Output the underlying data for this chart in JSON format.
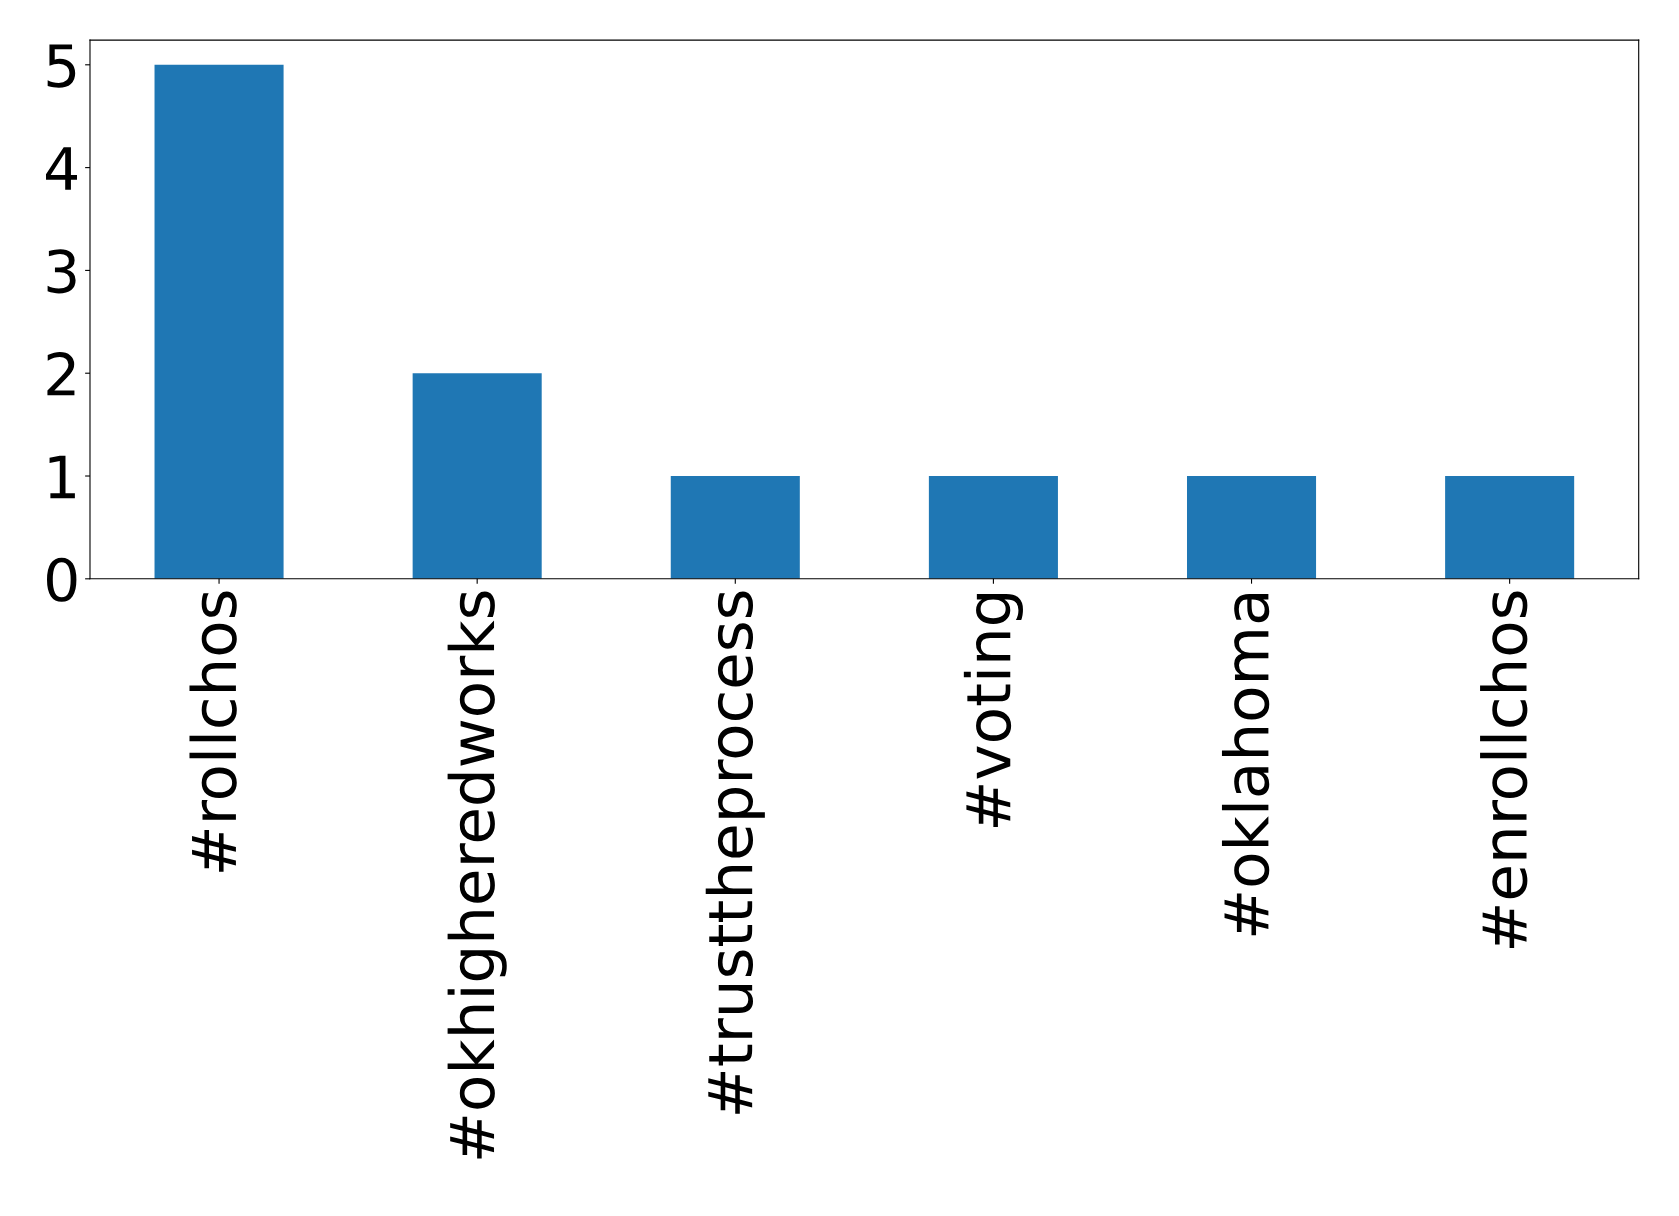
{
  "chart_data": {
    "type": "bar",
    "categories": [
      "#rollchos",
      "#okhigheredworks",
      "#trusttheprocess",
      "#voting",
      "#oklahoma",
      "#enrollchos"
    ],
    "values": [
      5,
      2,
      1,
      1,
      1,
      1
    ],
    "color": "#1f77b4",
    "ylim": [
      0,
      5.24
    ],
    "yticks": [
      0,
      1,
      2,
      3,
      4,
      5
    ],
    "grid": false
  }
}
